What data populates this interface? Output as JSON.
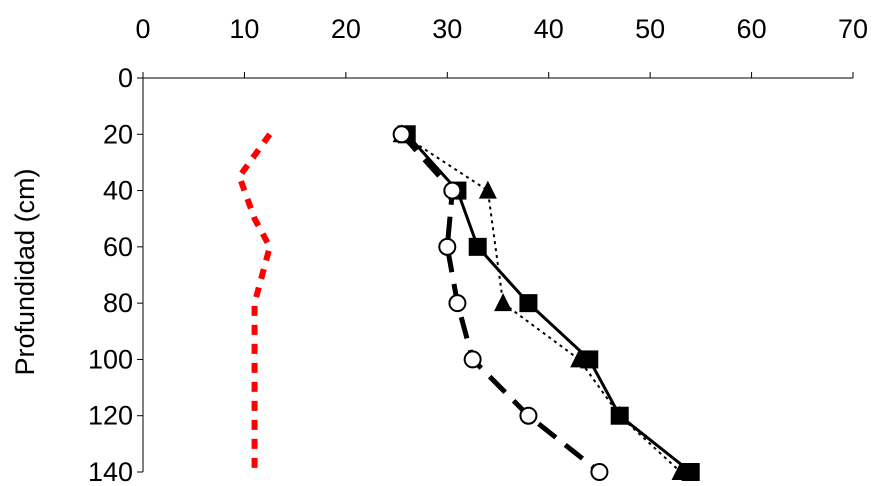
{
  "chart_data": {
    "type": "line",
    "title": "",
    "xlabel": "",
    "ylabel": "Profundidad (cm)",
    "xlim": [
      0,
      70
    ],
    "ylim": [
      0,
      140
    ],
    "y_inverted": true,
    "x_axis_position": "top",
    "grid": false,
    "legend": "none",
    "x_ticks": [
      "0",
      "10",
      "20",
      "30",
      "40",
      "50",
      "60",
      "70"
    ],
    "y_ticks": [
      "0",
      "20",
      "40",
      "60",
      "80",
      "100",
      "120",
      "140"
    ],
    "series": [
      {
        "marker": "square",
        "line_style": "solid",
        "color": "#000000",
        "points": [
          [
            26,
            20
          ],
          [
            31,
            40
          ],
          [
            33,
            60
          ],
          [
            38,
            80
          ],
          [
            44,
            100
          ],
          [
            47,
            120
          ],
          [
            54,
            140
          ]
        ]
      },
      {
        "marker": "triangle",
        "line_style": "dotted",
        "color": "#000000",
        "points": [
          [
            25.5,
            20
          ],
          [
            34,
            40
          ],
          [
            35.5,
            80
          ],
          [
            43,
            100
          ],
          [
            47,
            120
          ],
          [
            53,
            140
          ]
        ]
      },
      {
        "marker": "open-circle",
        "line_style": "dashed",
        "color": "#000000",
        "points": [
          [
            25.5,
            20
          ],
          [
            30.5,
            40
          ],
          [
            30,
            60
          ],
          [
            31,
            80
          ],
          [
            32.5,
            100
          ],
          [
            38,
            120
          ],
          [
            45,
            140
          ]
        ]
      },
      {
        "marker": "none",
        "line_style": "dotted",
        "color": "#ff0000",
        "points": [
          [
            12.5,
            20
          ],
          [
            9.5,
            35
          ],
          [
            11,
            50
          ],
          [
            12.5,
            60
          ],
          [
            11,
            80
          ],
          [
            11,
            100
          ],
          [
            11,
            120
          ],
          [
            11,
            140
          ]
        ]
      }
    ]
  }
}
